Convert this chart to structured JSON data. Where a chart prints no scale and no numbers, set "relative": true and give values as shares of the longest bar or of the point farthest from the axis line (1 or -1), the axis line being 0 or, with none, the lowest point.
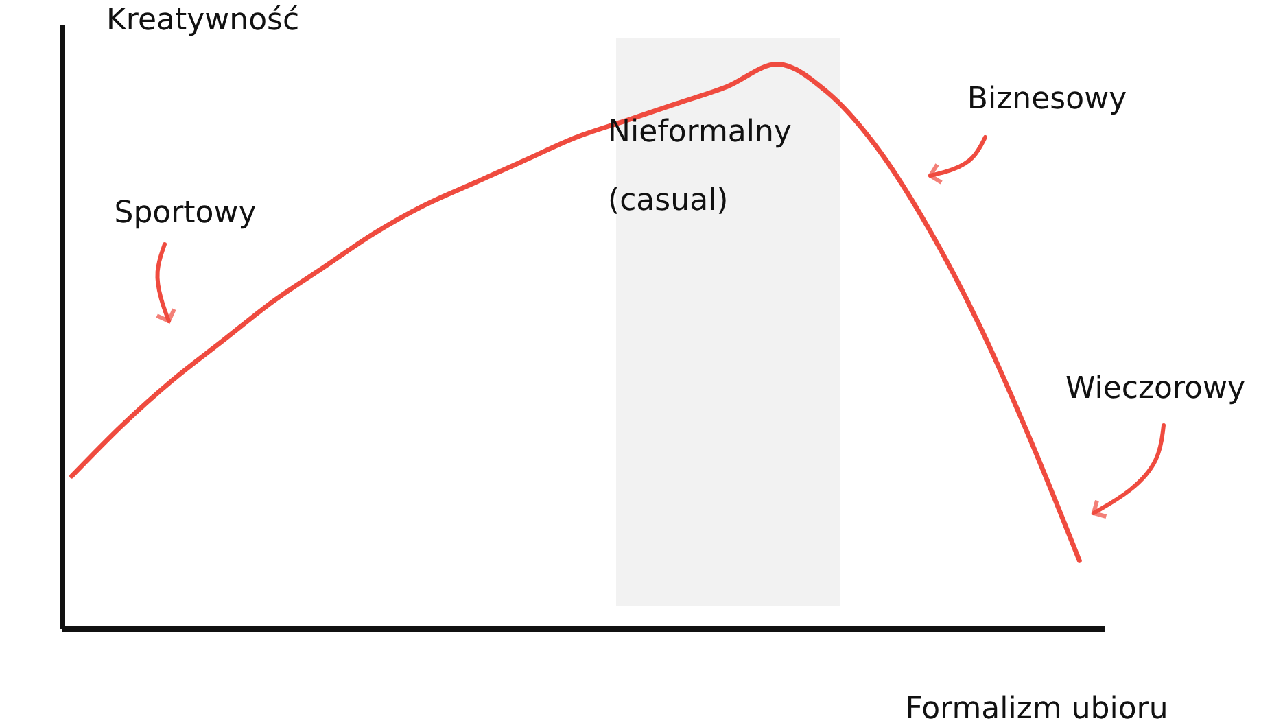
{
  "chart_data": {
    "type": "line",
    "relative": true,
    "xlabel": "Formalizm ubioru",
    "ylabel": "Kreatywność",
    "categories": [
      null,
      null,
      null,
      null,
      null,
      null,
      null,
      null,
      null,
      null,
      null,
      null,
      null,
      null,
      null,
      null,
      null,
      null,
      null,
      null,
      null
    ],
    "series": [
      {
        "color": "#ef4b3f",
        "values": [
          0.27,
          0.36,
          0.44,
          0.51,
          0.58,
          0.64,
          0.7,
          0.75,
          0.79,
          0.83,
          0.87,
          0.9,
          0.93,
          0.96,
          1.0,
          0.95,
          0.85,
          0.71,
          0.54,
          0.34,
          0.12
        ]
      }
    ],
    "annotations": [
      "Sportowy",
      "Biznesowy",
      "Wieczorowy",
      "Nieformalny\n(casual)"
    ],
    "marker": "none",
    "line_style": "solid",
    "grid": false
  }
}
